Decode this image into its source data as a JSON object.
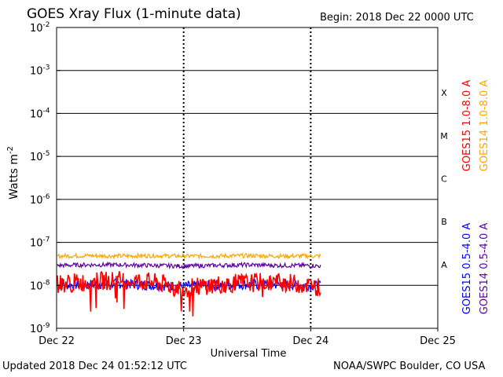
{
  "header": {
    "title": "GOES Xray Flux (1-minute data)",
    "begin": "Begin:  2018 Dec 22 0000 UTC"
  },
  "footer": {
    "updated": "Updated 2018 Dec 24 01:52:12 UTC",
    "credit": "NOAA/SWPC Boulder, CO USA"
  },
  "colors": {
    "goes15_long": "#ff0000",
    "goes14_long": "#ffa500",
    "goes15_short": "#0000ff",
    "goes14_short": "#5a00a0",
    "frame": "#000000"
  },
  "chart_data": {
    "type": "line",
    "title": "GOES Xray Flux (1-minute data)",
    "xlabel": "Universal Time",
    "ylabel": "Watts m",
    "ylabel_superscript": "-2",
    "y_scale": "log",
    "ylim": [
      1e-09,
      0.01
    ],
    "y_ticks": [
      {
        "base": "10",
        "exp": "-9",
        "value": 1e-09
      },
      {
        "base": "10",
        "exp": "-8",
        "value": 1e-08
      },
      {
        "base": "10",
        "exp": "-7",
        "value": 1e-07
      },
      {
        "base": "10",
        "exp": "-6",
        "value": 1e-06
      },
      {
        "base": "10",
        "exp": "-5",
        "value": 1e-05
      },
      {
        "base": "10",
        "exp": "-4",
        "value": 0.0001
      },
      {
        "base": "10",
        "exp": "-3",
        "value": 0.001
      },
      {
        "base": "10",
        "exp": "-2",
        "value": 0.01
      }
    ],
    "x_ticks": [
      "Dec 22",
      "Dec 23",
      "Dec 24",
      "Dec 25"
    ],
    "xlim": [
      "2018-12-22 00:00",
      "2018-12-25 00:00"
    ],
    "flare_classes": [
      {
        "label": "A",
        "min": 1e-08,
        "max": 1e-07
      },
      {
        "label": "B",
        "min": 1e-07,
        "max": 1e-06
      },
      {
        "label": "C",
        "min": 1e-06,
        "max": 1e-05
      },
      {
        "label": "M",
        "min": 1e-05,
        "max": 0.0001
      },
      {
        "label": "X",
        "min": 0.0001,
        "max": 0.001
      }
    ],
    "grid": "horizontal at each decade from 1e-8 to 1e-3, dotted vertical at day boundaries",
    "legend": "right side, vertical text",
    "x_samples": [
      "2018-12-22 00:00",
      "2018-12-22 06:00",
      "2018-12-22 12:00",
      "2018-12-22 18:00",
      "2018-12-23 00:00",
      "2018-12-23 06:00",
      "2018-12-23 12:00",
      "2018-12-23 18:00",
      "2018-12-24 00:00",
      "2018-12-24 01:52"
    ],
    "series": [
      {
        "name": "GOES15 1.0-8.0 A",
        "color": "#ff0000",
        "values": [
          1.1e-08,
          1.2e-08,
          1.35e-08,
          1.2e-08,
          8.5e-09,
          1.05e-08,
          1.15e-08,
          1.2e-08,
          1e-08,
          9e-09
        ]
      },
      {
        "name": "GOES14 1.0-8.0 A",
        "color": "#ffa500",
        "values": [
          4.8e-08,
          4.9e-08,
          4.8e-08,
          4.9e-08,
          4.8e-08,
          4.8e-08,
          4.9e-08,
          4.8e-08,
          4.8e-08,
          4.8e-08
        ]
      },
      {
        "name": "GOES15 0.5-4.0 A",
        "color": "#0000ff",
        "values": [
          1e-08,
          1.05e-08,
          1.1e-08,
          1e-08,
          9.5e-09,
          1e-08,
          1.05e-08,
          1.05e-08,
          1e-08,
          9.5e-09
        ]
      },
      {
        "name": "GOES14 0.5-4.0 A",
        "color": "#5a00a0",
        "values": [
          2.9e-08,
          3e-08,
          3e-08,
          2.9e-08,
          2.8e-08,
          2.9e-08,
          3e-08,
          2.9e-08,
          2.9e-08,
          2.8e-08
        ]
      }
    ]
  }
}
